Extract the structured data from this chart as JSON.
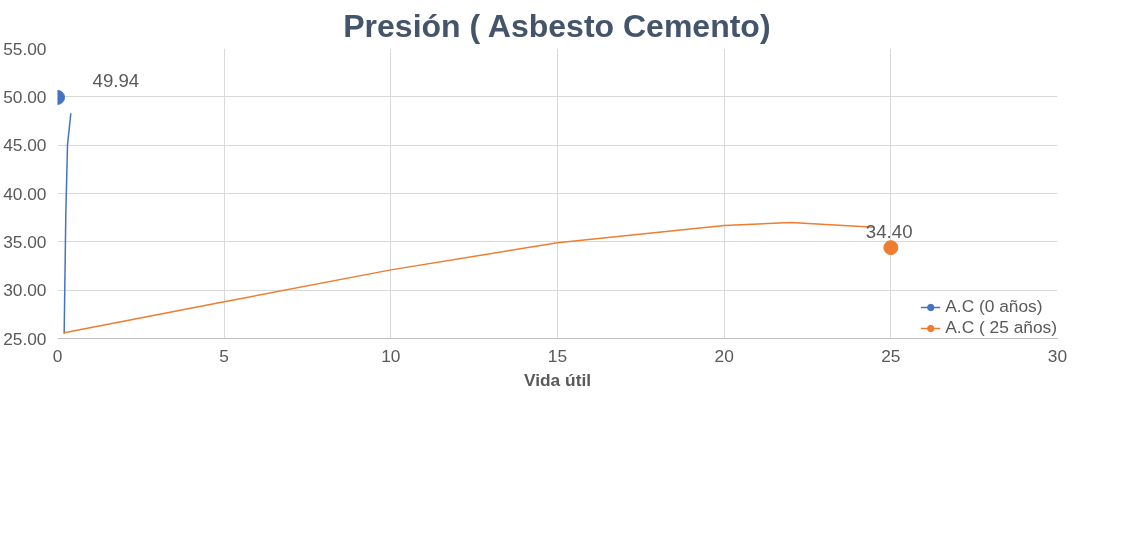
{
  "chart_data": {
    "type": "scatter",
    "title": "Presión ( Asbesto Cemento)",
    "xlabel": "Vida útil",
    "xlim": [
      0,
      30
    ],
    "xticks": [
      0,
      5,
      10,
      15,
      20,
      25,
      30
    ],
    "ylim": [
      25,
      55
    ],
    "yticks": [
      {
        "value": 25,
        "label": "25.00"
      },
      {
        "value": 30,
        "label": "30.00"
      },
      {
        "value": 35,
        "label": "35.00"
      },
      {
        "value": 40,
        "label": "40.00"
      },
      {
        "value": 45,
        "label": "45.00"
      },
      {
        "value": 50,
        "label": "50.00"
      },
      {
        "value": 55,
        "label": "55.00"
      }
    ],
    "grid": true,
    "legend": "bottom right",
    "marker": "circle",
    "series": [
      {
        "name": "A.C (0 años)",
        "color": "#4472c4",
        "x": [
          0
        ],
        "values": [
          49.94
        ],
        "value_labels": [
          "49.94"
        ]
      },
      {
        "type": "line",
        "marker": "none",
        "color": "#4472c4",
        "x": [
          0.2,
          0.25,
          0.3,
          0.4
        ],
        "values": [
          25.5,
          38,
          45,
          48.3
        ]
      },
      {
        "name": "A.C ( 25 años)",
        "color": "#ed7d31",
        "x": [
          25
        ],
        "values": [
          34.4
        ],
        "value_labels": [
          "34.40"
        ]
      },
      {
        "type": "line",
        "marker": "none",
        "color": "#ed7d31",
        "x": [
          0.2,
          5,
          10,
          15,
          20,
          22,
          24.5
        ],
        "values": [
          25.6,
          28.8,
          32.1,
          34.9,
          36.7,
          37.0,
          36.5
        ]
      }
    ]
  }
}
